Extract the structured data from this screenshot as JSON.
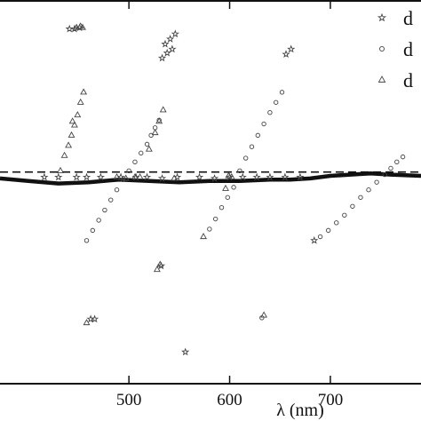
{
  "chart_data": {
    "type": "scatter",
    "title": "",
    "xlabel": "λ (nm)",
    "ylabel": "",
    "xlim": [
      372,
      790
    ],
    "ylim": [
      -1.6,
      1.4
    ],
    "xticks": [
      500,
      600,
      700
    ],
    "xtick_labels": [
      "500",
      "600",
      "700"
    ],
    "grid": false,
    "legend_placement": "top-right",
    "series": [
      {
        "name": "d",
        "marker": "star",
        "points": [
          [
            441,
            1.2
          ],
          [
            446,
            1.2
          ],
          [
            451,
            1.21
          ],
          [
            462,
            -1.09
          ],
          [
            466,
            -1.09
          ],
          [
            536,
            1.08
          ],
          [
            541,
            1.12
          ],
          [
            546,
            1.16
          ],
          [
            533,
            0.97
          ],
          [
            538,
            1.01
          ],
          [
            543,
            1.04
          ],
          [
            656,
            1.0
          ],
          [
            661,
            1.04
          ],
          [
            532,
            -0.67
          ],
          [
            556,
            -1.35
          ],
          [
            684,
            -0.47
          ],
          [
            416,
            0.03
          ],
          [
            430,
            0.03
          ],
          [
            448,
            0.03
          ],
          [
            458,
            0.03
          ],
          [
            472,
            0.03
          ],
          [
            492,
            0.03
          ],
          [
            507,
            0.03
          ],
          [
            518,
            0.03
          ],
          [
            533,
            0.02
          ],
          [
            548,
            0.03
          ],
          [
            570,
            0.03
          ],
          [
            585,
            0.02
          ],
          [
            600,
            0.03
          ],
          [
            613,
            0.03
          ],
          [
            627,
            0.03
          ],
          [
            640,
            0.03
          ],
          [
            655,
            0.03
          ],
          [
            670,
            0.03
          ]
        ]
      },
      {
        "name": "d",
        "marker": "circle",
        "points": [
          [
            458,
            -0.47
          ],
          [
            464,
            -0.39
          ],
          [
            470,
            -0.31
          ],
          [
            476,
            -0.23
          ],
          [
            482,
            -0.15
          ],
          [
            488,
            -0.07
          ],
          [
            494,
            0.01
          ],
          [
            500,
            0.08
          ],
          [
            506,
            0.15
          ],
          [
            512,
            0.22
          ],
          [
            518,
            0.29
          ],
          [
            522,
            0.36
          ],
          [
            526,
            0.42
          ],
          [
            530,
            0.48
          ],
          [
            580,
            -0.38
          ],
          [
            586,
            -0.3
          ],
          [
            592,
            -0.21
          ],
          [
            598,
            -0.13
          ],
          [
            604,
            -0.05
          ],
          [
            610,
            0.08
          ],
          [
            616,
            0.18
          ],
          [
            622,
            0.27
          ],
          [
            628,
            0.36
          ],
          [
            634,
            0.45
          ],
          [
            640,
            0.54
          ],
          [
            646,
            0.62
          ],
          [
            652,
            0.7
          ],
          [
            690,
            -0.44
          ],
          [
            698,
            -0.39
          ],
          [
            706,
            -0.33
          ],
          [
            714,
            -0.27
          ],
          [
            722,
            -0.2
          ],
          [
            730,
            -0.13
          ],
          [
            738,
            -0.07
          ],
          [
            746,
            -0.01
          ],
          [
            754,
            0.05
          ],
          [
            760,
            0.1
          ],
          [
            766,
            0.15
          ],
          [
            772,
            0.19
          ],
          [
            632,
            -1.08
          ]
        ]
      },
      {
        "name": "d",
        "marker": "triangle",
        "points": [
          [
            452,
            1.22
          ],
          [
            448,
            1.21
          ],
          [
            454,
            1.21
          ],
          [
            432,
            0.08
          ],
          [
            436,
            0.2
          ],
          [
            440,
            0.28
          ],
          [
            443,
            0.36
          ],
          [
            446,
            0.44
          ],
          [
            449,
            0.52
          ],
          [
            452,
            0.62
          ],
          [
            455,
            0.7
          ],
          [
            444,
            0.47
          ],
          [
            458,
            -1.12
          ],
          [
            520,
            0.25
          ],
          [
            526,
            0.38
          ],
          [
            530,
            0.47
          ],
          [
            534,
            0.56
          ],
          [
            528,
            -0.7
          ],
          [
            531,
            -0.66
          ],
          [
            497,
            0.02
          ],
          [
            506,
            0.03
          ],
          [
            511,
            0.03
          ],
          [
            596,
            -0.06
          ],
          [
            599,
            0.04
          ],
          [
            602,
            0.03
          ],
          [
            634,
            -1.06
          ],
          [
            574,
            -0.44
          ],
          [
            488,
            0.03
          ],
          [
            545,
            0.02
          ]
        ]
      }
    ],
    "lines": [
      {
        "name": "solid",
        "style": "solid",
        "points": [
          [
            372,
            0.02
          ],
          [
            400,
            0.0
          ],
          [
            430,
            -0.02
          ],
          [
            460,
            -0.01
          ],
          [
            490,
            0.01
          ],
          [
            520,
            0.0
          ],
          [
            550,
            -0.01
          ],
          [
            580,
            0.0
          ],
          [
            610,
            0.0
          ],
          [
            640,
            0.01
          ],
          [
            660,
            0.01
          ],
          [
            680,
            0.02
          ],
          [
            700,
            0.04
          ],
          [
            720,
            0.05
          ],
          [
            740,
            0.06
          ],
          [
            760,
            0.05
          ],
          [
            790,
            0.04
          ]
        ]
      },
      {
        "name": "dashed",
        "style": "dashed",
        "points": [
          [
            372,
            0.07
          ],
          [
            790,
            0.07
          ]
        ]
      }
    ]
  }
}
